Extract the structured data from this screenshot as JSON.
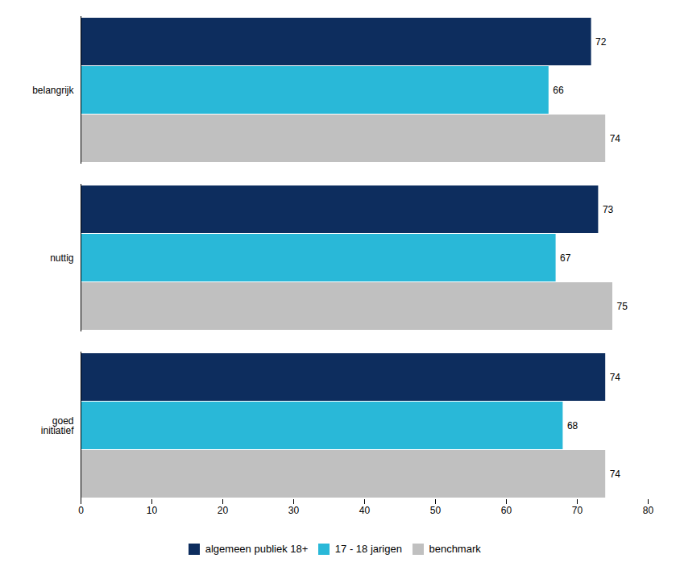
{
  "chart_data": {
    "type": "bar",
    "orientation": "horizontal",
    "categories": [
      "goed\ninitiatief",
      "nuttig",
      "belangrijk"
    ],
    "series": [
      {
        "name": "algemeen publiek 18+",
        "color": "#0d2d5e",
        "values": [
          74,
          73,
          72
        ]
      },
      {
        "name": "17 - 18 jarigen",
        "color": "#29b8d8",
        "values": [
          68,
          67,
          66
        ]
      },
      {
        "name": "benchmark",
        "color": "#c0c0c0",
        "values": [
          74,
          75,
          74
        ]
      }
    ],
    "xlim": [
      0,
      80
    ],
    "xticks": [
      0,
      10,
      20,
      30,
      40,
      50,
      60,
      70,
      80
    ],
    "data_labels": true,
    "grid": false,
    "legend": "bottom"
  }
}
